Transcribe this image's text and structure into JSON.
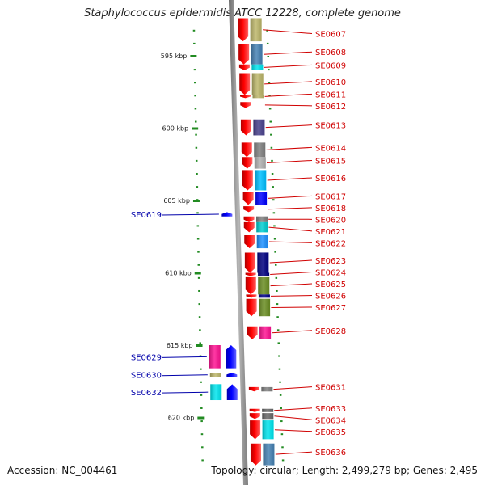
{
  "title": "Staphylococcus epidermidis ATCC 12228, complete genome",
  "footer": {
    "accession": "Accession: NC_004461",
    "topology": "Topology: circular; Length: 2,499,279 bp; Genes: 2,495"
  },
  "kbp_marks": [
    {
      "label": "595 kbp",
      "kbp": 595
    },
    {
      "label": "600 kbp",
      "kbp": 600
    },
    {
      "label": "605 kbp",
      "kbp": 605
    },
    {
      "label": "610 kbp",
      "kbp": 610
    },
    {
      "label": "615 kbp",
      "kbp": 615
    },
    {
      "label": "620 kbp",
      "kbp": 620
    }
  ],
  "colors": {
    "forward_gene": "#ff0000",
    "reverse_gene": "#0000ff",
    "forward_label": "#d00000",
    "reverse_label": "#0000aa",
    "backbone": "#8a8a8a",
    "tick": "#228b22"
  },
  "forward_genes": [
    {
      "name": "SE0607",
      "start": 592.4,
      "end": 594.0,
      "cog": "#bdb76b"
    },
    {
      "name": "SE0608",
      "start": 594.2,
      "end": 595.6,
      "cog": "#4682b4"
    },
    {
      "name": "SE0609",
      "start": 595.6,
      "end": 596.0,
      "cog": "#00e5ee"
    },
    {
      "name": "SE0610",
      "start": 596.2,
      "end": 597.7,
      "cog": "#bdb76b"
    },
    {
      "name": "SE0611",
      "start": 597.7,
      "end": 597.9,
      "cog": "#bdb76b"
    },
    {
      "name": "SE0612",
      "start": 598.2,
      "end": 598.6,
      "cog": "#ffffff"
    },
    {
      "name": "SE0613",
      "start": 599.4,
      "end": 600.5,
      "cog": "#48408c"
    },
    {
      "name": "SE0614",
      "start": 601.0,
      "end": 602.0,
      "cog": "#808080"
    },
    {
      "name": "SE0615",
      "start": 602.0,
      "end": 602.8,
      "cog": "#b0b0b0"
    },
    {
      "name": "SE0616",
      "start": 602.9,
      "end": 604.3,
      "cog": "#00bfff"
    },
    {
      "name": "SE0617",
      "start": 604.4,
      "end": 605.3,
      "cog": "#0000ff"
    },
    {
      "name": "SE0618",
      "start": 605.4,
      "end": 605.8,
      "cog": "#ffffff"
    },
    {
      "name": "SE0620",
      "start": 606.1,
      "end": 606.5,
      "cog": "#808080"
    },
    {
      "name": "SE0621",
      "start": 606.5,
      "end": 607.2,
      "cog": "#00ced1"
    },
    {
      "name": "SE0622",
      "start": 607.4,
      "end": 608.3,
      "cog": "#1e90ff"
    },
    {
      "name": "SE0623",
      "start": 608.6,
      "end": 610.0,
      "cog": "#000080"
    },
    {
      "name": "SE0624",
      "start": 610.0,
      "end": 610.2,
      "cog": "#000080"
    },
    {
      "name": "SE0625",
      "start": 610.3,
      "end": 611.5,
      "cog": "#6b8e23"
    },
    {
      "name": "SE0626",
      "start": 611.5,
      "end": 611.7,
      "cog": "#00008b"
    },
    {
      "name": "SE0627",
      "start": 611.8,
      "end": 613.0,
      "cog": "#6b8e23"
    },
    {
      "name": "SE0628",
      "start": 613.7,
      "end": 614.6,
      "cog": "#ff1493"
    },
    {
      "name": "SE0631",
      "start": 617.9,
      "end": 618.2,
      "cog": "#808080"
    },
    {
      "name": "SE0633",
      "start": 619.4,
      "end": 619.6,
      "cog": "#696969"
    },
    {
      "name": "SE0634",
      "start": 619.7,
      "end": 620.1,
      "cog": "#696969"
    },
    {
      "name": "SE0635",
      "start": 620.2,
      "end": 621.5,
      "cog": "#00e5ee"
    },
    {
      "name": "SE0636",
      "start": 621.8,
      "end": 623.3,
      "cog": "#4682b4"
    }
  ],
  "reverse_genes": [
    {
      "name": "SE0619",
      "start": 605.8,
      "end": 606.1,
      "cog": ""
    },
    {
      "name": "SE0629",
      "start": 615.0,
      "end": 616.6,
      "cog": "#ff1493"
    },
    {
      "name": "SE0630",
      "start": 616.9,
      "end": 617.2,
      "cog": "#bdb76b"
    },
    {
      "name": "SE0632",
      "start": 617.7,
      "end": 618.8,
      "cog": "#00e5ee"
    }
  ]
}
